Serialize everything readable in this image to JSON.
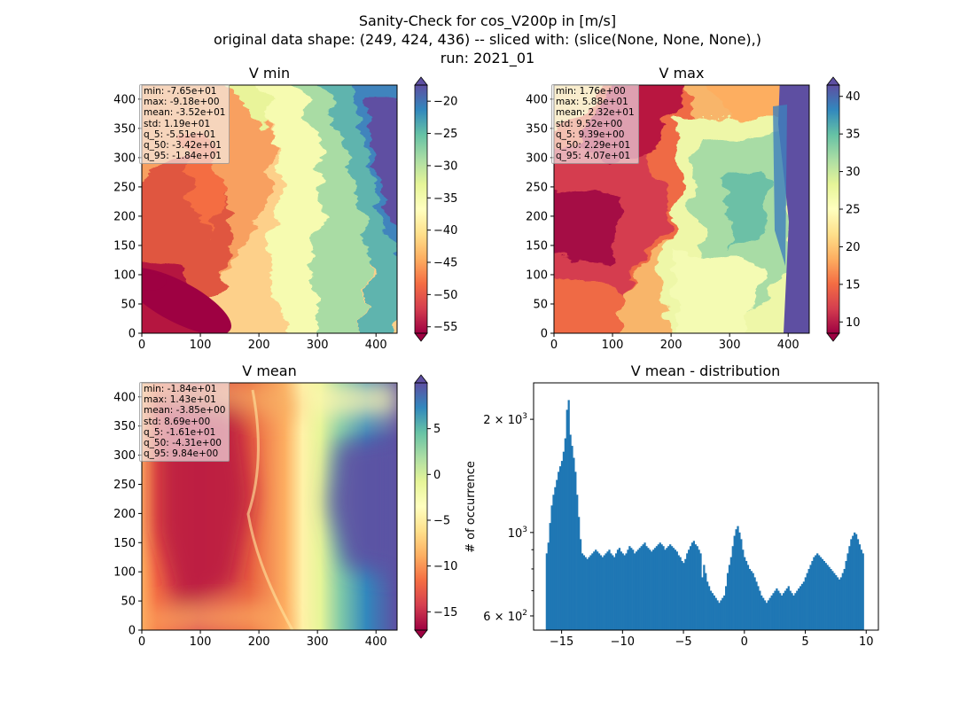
{
  "suptitle": {
    "line1": "Sanity-Check for cos_V200p in [m/s]",
    "line2": "original data shape: (249, 424, 436) -- sliced with: (slice(None, None, None),)",
    "line3": "run: 2021_01"
  },
  "colors": {
    "bar": "#1f77b4",
    "cmap": [
      "#9e0142",
      "#d53e4f",
      "#f46d43",
      "#fdae61",
      "#fee08b",
      "#ffffbf",
      "#e6f598",
      "#abdda4",
      "#66c2a5",
      "#3288bd",
      "#5e4fa2"
    ]
  },
  "chart_data": [
    {
      "type": "heatmap",
      "title": "V min",
      "colormap": "Spectral",
      "xlim": [
        0,
        436
      ],
      "ylim": [
        0,
        424
      ],
      "x_ticks": [
        "0",
        "100",
        "200",
        "300",
        "400"
      ],
      "y_ticks": [
        "0",
        "50",
        "100",
        "150",
        "200",
        "250",
        "300",
        "350",
        "400"
      ],
      "colorbar": {
        "range": [
          -56,
          -17.5
        ],
        "extend": "both",
        "ticks": [
          -55,
          -50,
          -45,
          -40,
          -35,
          -30,
          -25,
          -20
        ],
        "tick_labels": [
          "−55",
          "−50",
          "−45",
          "−40",
          "−35",
          "−30",
          "−25",
          "−20"
        ]
      },
      "stats": [
        "min: -7.65e+01",
        "max: -9.18e+00",
        "mean: -3.52e+01",
        "std: 1.19e+01",
        "q_5: -5.51e+01",
        "q_50: -3.42e+01",
        "q_95: -1.84e+01"
      ]
    },
    {
      "type": "heatmap",
      "title": "V max",
      "colormap": "Spectral",
      "xlim": [
        0,
        436
      ],
      "ylim": [
        0,
        424
      ],
      "x_ticks": [
        "0",
        "100",
        "200",
        "300",
        "400"
      ],
      "y_ticks": [
        "0",
        "50",
        "100",
        "150",
        "200",
        "250",
        "300",
        "350",
        "400"
      ],
      "colorbar": {
        "range": [
          8.5,
          41.5
        ],
        "extend": "both",
        "ticks": [
          10,
          15,
          20,
          25,
          30,
          35,
          40
        ],
        "tick_labels": [
          "10",
          "15",
          "20",
          "25",
          "30",
          "35",
          "40"
        ]
      },
      "stats": [
        "min: 1.76e+00",
        "max: 5.88e+01",
        "mean: 2.32e+01",
        "std: 9.52e+00",
        "q_5: 9.39e+00",
        "q_50: 2.29e+01",
        "q_95: 4.07e+01"
      ]
    },
    {
      "type": "heatmap",
      "title": "V mean",
      "colormap": "Spectral",
      "xlim": [
        0,
        436
      ],
      "ylim": [
        0,
        424
      ],
      "x_ticks": [
        "0",
        "100",
        "200",
        "300",
        "400"
      ],
      "y_ticks": [
        "0",
        "50",
        "100",
        "150",
        "200",
        "250",
        "300",
        "350",
        "400"
      ],
      "colorbar": {
        "range": [
          -17,
          10
        ],
        "extend": "both",
        "ticks": [
          -15,
          -10,
          -5,
          0,
          5
        ],
        "tick_labels": [
          "−15",
          "−10",
          "−5",
          "0",
          "5"
        ]
      },
      "stats": [
        "min: -1.84e+01",
        "max: 1.43e+01",
        "mean: -3.85e+00",
        "std: 8.69e+00",
        "q_5: -1.61e+01",
        "q_50: -4.31e+00",
        "q_95: 9.84e+00"
      ]
    },
    {
      "type": "bar",
      "title": "V mean - distribution",
      "ylabel": "# of occurrence",
      "yscale": "log",
      "xlim": [
        -17.3,
        11
      ],
      "ylim": [
        550,
        2500
      ],
      "x_ticks": [
        -15,
        -10,
        -5,
        0,
        5,
        10
      ],
      "x_tick_labels": [
        "−15",
        "−10",
        "−5",
        "0",
        "5",
        "10"
      ],
      "y_ticks_major": [
        {
          "value": 600,
          "base": "6 × 10",
          "exp": "2"
        },
        {
          "value": 1000,
          "base": "10",
          "exp": "3"
        },
        {
          "value": 2000,
          "base": "2 × 10",
          "exp": "3"
        }
      ],
      "y_ticks_minor": [
        700,
        800,
        900
      ],
      "bin_range": [
        -16.3,
        9.8
      ],
      "bin_counts": [
        880,
        940,
        1060,
        1180,
        1260,
        1320,
        1380,
        1450,
        1500,
        1550,
        1640,
        1780,
        2120,
        2250,
        1820,
        1700,
        1580,
        1450,
        1260,
        1100,
        960,
        880,
        870,
        860,
        850,
        860,
        870,
        880,
        890,
        900,
        890,
        880,
        870,
        860,
        870,
        880,
        890,
        900,
        880,
        870,
        860,
        880,
        900,
        910,
        890,
        880,
        870,
        880,
        900,
        920,
        910,
        900,
        880,
        890,
        900,
        910,
        920,
        930,
        940,
        920,
        910,
        900,
        890,
        900,
        910,
        920,
        930,
        940,
        930,
        920,
        900,
        910,
        920,
        930,
        920,
        910,
        900,
        890,
        870,
        860,
        840,
        830,
        850,
        880,
        900,
        920,
        940,
        950,
        930,
        920,
        900,
        880,
        760,
        820,
        780,
        740,
        720,
        700,
        690,
        680,
        670,
        660,
        650,
        660,
        670,
        680,
        720,
        780,
        820,
        860,
        920,
        980,
        1020,
        1040,
        1000,
        960,
        900,
        860,
        840,
        820,
        800,
        790,
        780,
        760,
        740,
        720,
        700,
        680,
        670,
        660,
        650,
        660,
        670,
        680,
        690,
        700,
        710,
        700,
        690,
        680,
        690,
        700,
        710,
        720,
        700,
        690,
        680,
        690,
        700,
        710,
        720,
        730,
        740,
        760,
        780,
        800,
        820,
        840,
        860,
        870,
        880,
        870,
        860,
        850,
        840,
        830,
        820,
        810,
        800,
        790,
        780,
        770,
        760,
        750,
        760,
        780,
        800,
        840,
        880,
        920,
        960,
        980,
        1000,
        990,
        960,
        930,
        900,
        880
      ]
    }
  ]
}
